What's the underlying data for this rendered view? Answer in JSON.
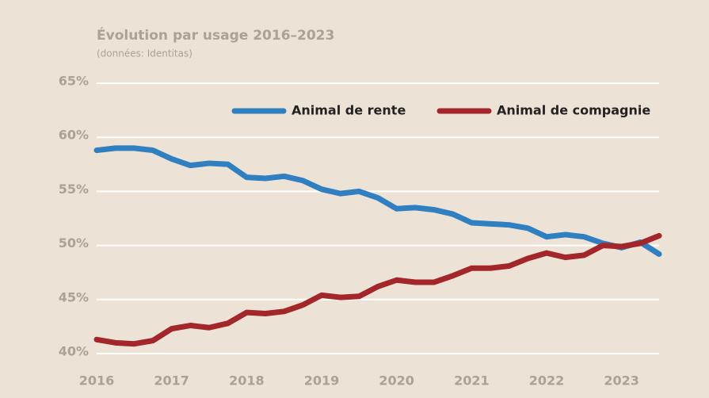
{
  "chart_data": {
    "type": "line",
    "title": "Évolution par usage 2016–2023",
    "subtitle": "(données: Identitas)",
    "x": [
      2016,
      2016.25,
      2016.5,
      2016.75,
      2017,
      2017.25,
      2017.5,
      2017.75,
      2018,
      2018.25,
      2018.5,
      2018.75,
      2019,
      2019.25,
      2019.5,
      2019.75,
      2020,
      2020.25,
      2020.5,
      2020.75,
      2021,
      2021.25,
      2021.5,
      2021.75,
      2022,
      2022.25,
      2022.5,
      2022.75,
      2023,
      2023.25,
      2023.5
    ],
    "series": [
      {
        "name": "Animal de rente",
        "color": "#2f7fc1",
        "values": [
          58.8,
          59.0,
          59.0,
          58.8,
          58.0,
          57.4,
          57.6,
          57.5,
          56.3,
          56.2,
          56.4,
          56.0,
          55.2,
          54.8,
          55.0,
          54.4,
          53.4,
          53.5,
          53.3,
          52.9,
          52.1,
          52.0,
          51.9,
          51.6,
          50.8,
          51.0,
          50.8,
          50.2,
          49.8,
          50.3,
          49.2
        ]
      },
      {
        "name": "Animal de compagnie",
        "color": "#a3262a",
        "values": [
          41.3,
          41.0,
          40.9,
          41.2,
          42.3,
          42.6,
          42.4,
          42.8,
          43.8,
          43.7,
          43.9,
          44.5,
          45.4,
          45.2,
          45.3,
          46.2,
          46.8,
          46.6,
          46.6,
          47.2,
          47.9,
          47.9,
          48.1,
          48.8,
          49.3,
          48.9,
          49.1,
          50.0,
          49.9,
          50.2,
          50.9
        ]
      }
    ],
    "xlim": [
      2016,
      2023.5
    ],
    "xticks": [
      2016,
      2017,
      2018,
      2019,
      2020,
      2021,
      2022,
      2023
    ],
    "ylim": [
      40,
      65
    ],
    "yticks": [
      {
        "value": 40,
        "label": "40%"
      },
      {
        "value": 45,
        "label": "45%"
      },
      {
        "value": 50,
        "label": "50%"
      },
      {
        "value": 55,
        "label": "55%"
      },
      {
        "value": 60,
        "label": "60%"
      },
      {
        "value": 65,
        "label": "65%"
      }
    ],
    "grid": true,
    "legend": "top-right"
  }
}
